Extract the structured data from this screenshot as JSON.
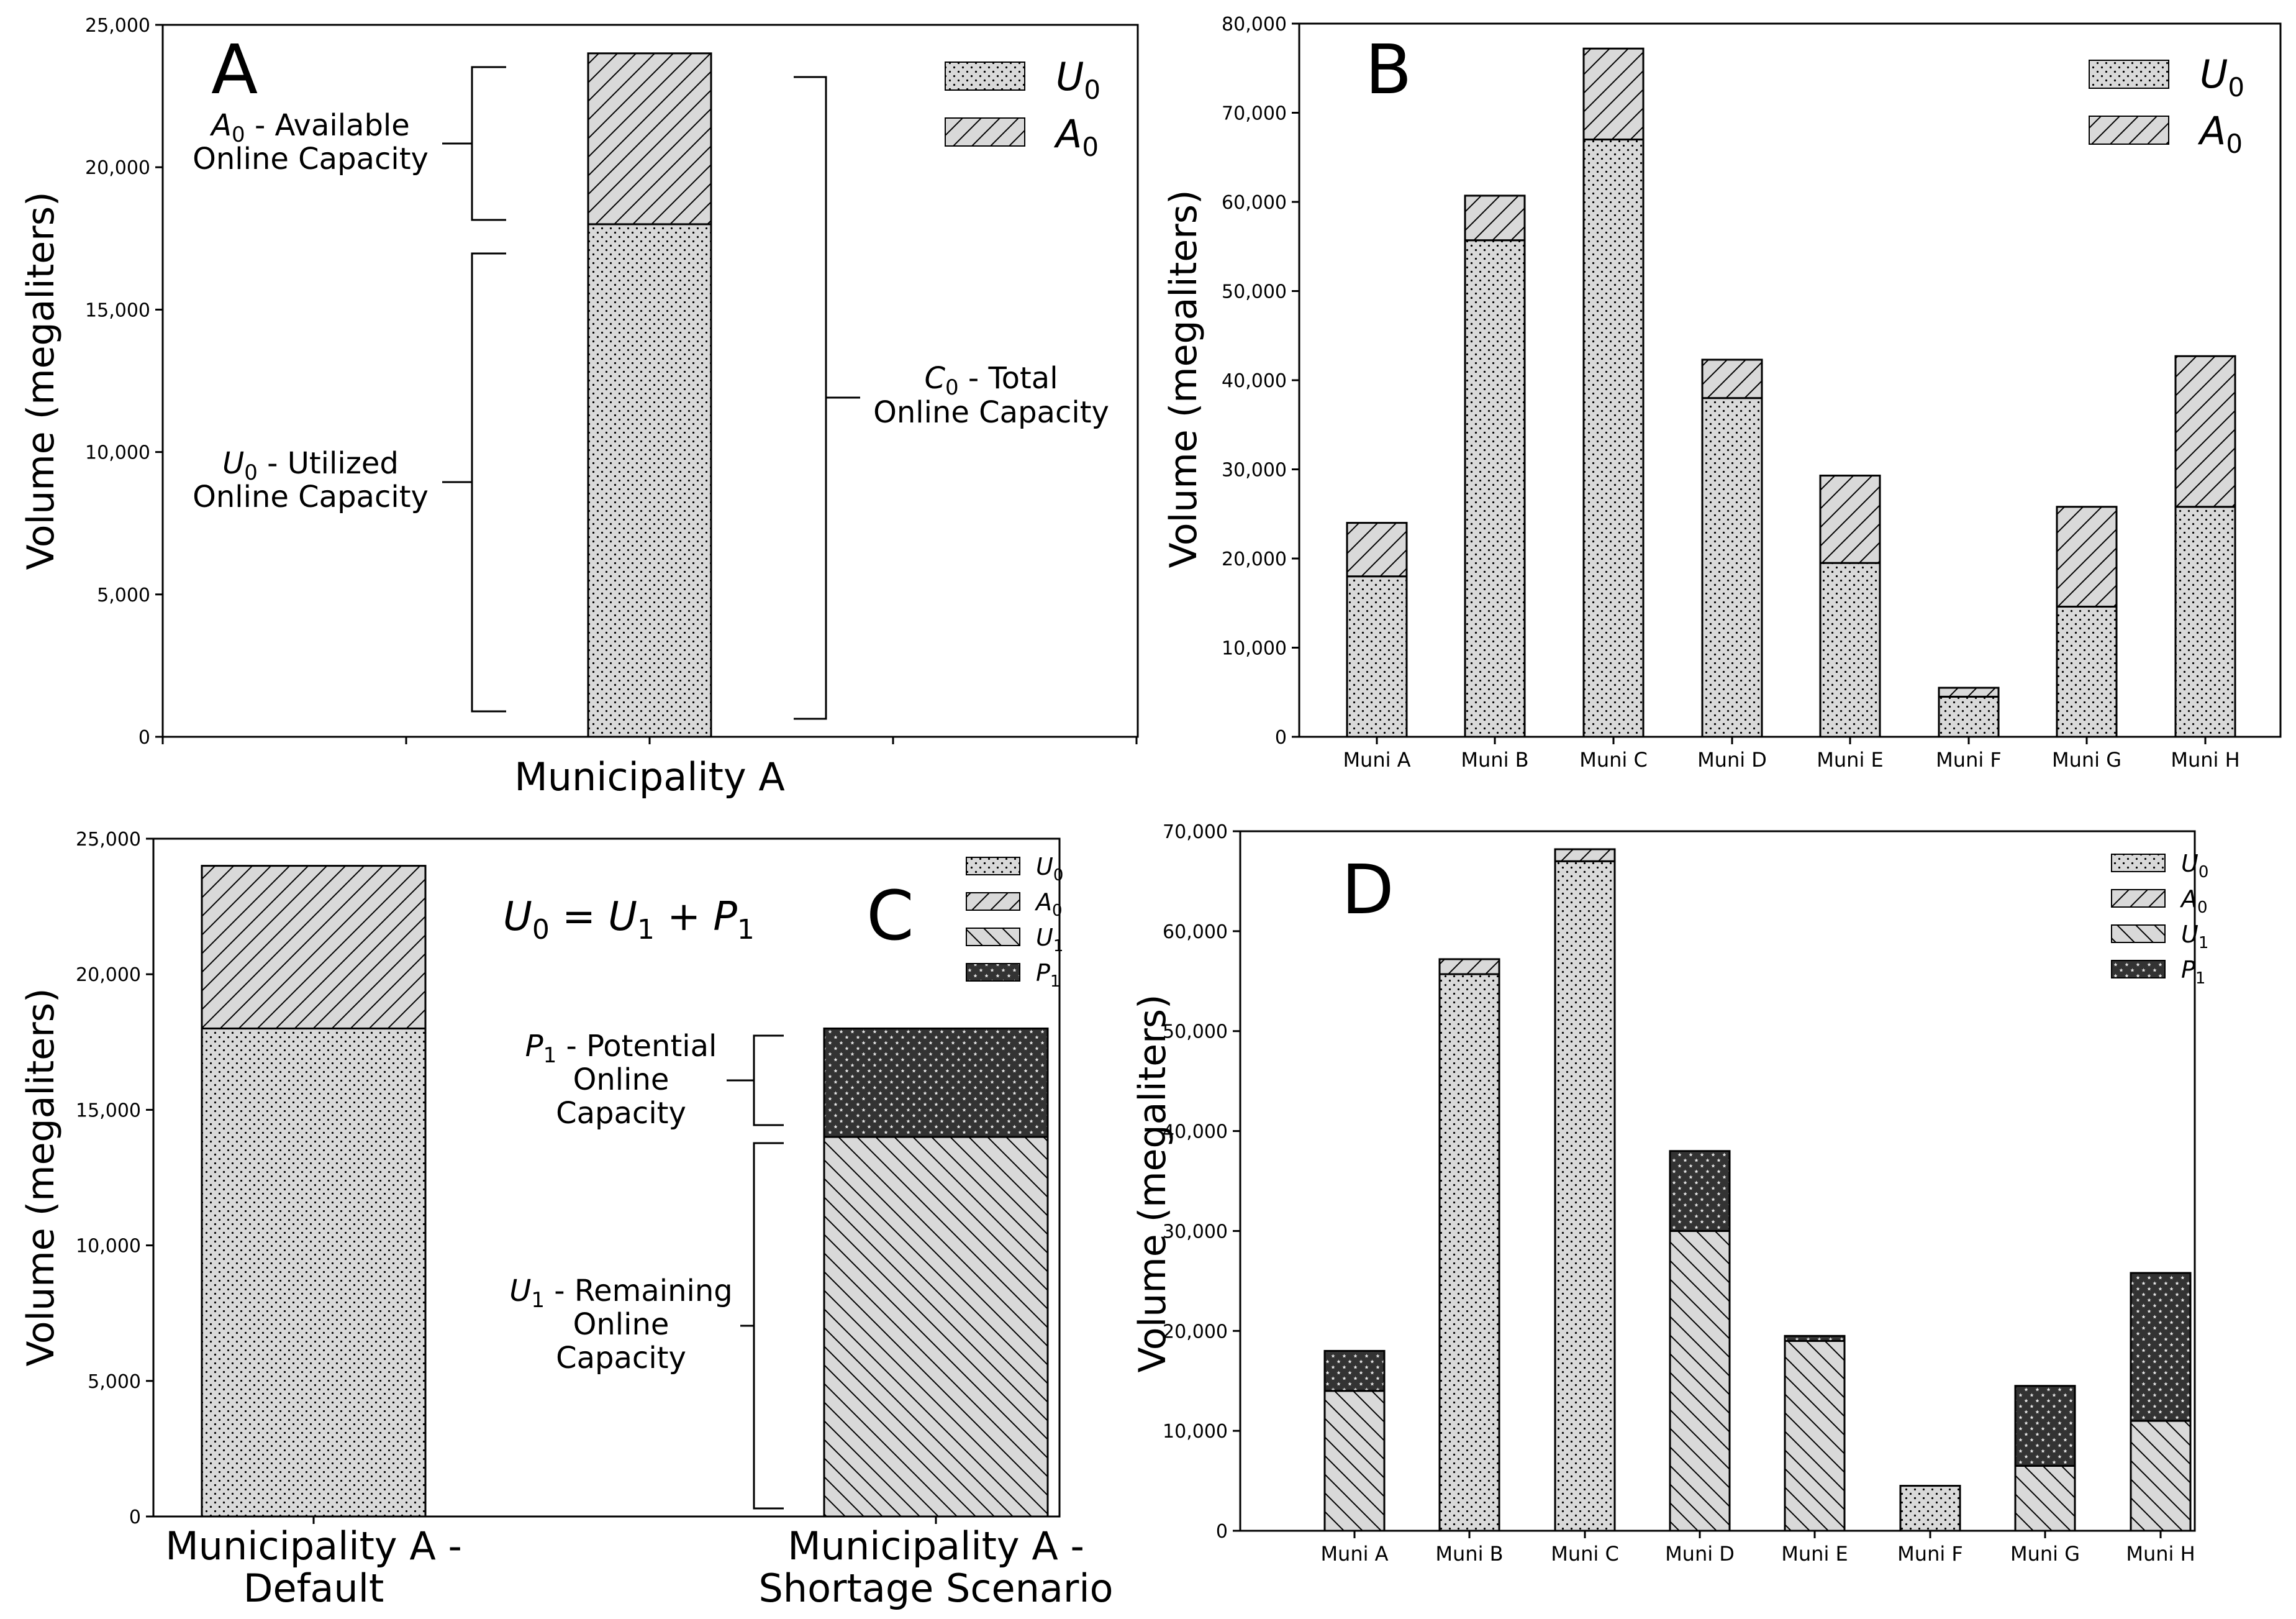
{
  "colors": {
    "bar_fill": "#d9d9d9",
    "stroke": "#000000",
    "background": "#ffffff"
  },
  "chart_data": [
    {
      "panel": "A",
      "type": "bar",
      "stacked": true,
      "letter": "A",
      "ylabel": "Volume (megaliters)",
      "ylim": [
        0,
        25000
      ],
      "yticks": [
        0,
        5000,
        10000,
        15000,
        20000,
        25000
      ],
      "ytick_labels": [
        "0",
        "5,000",
        "10,000",
        "15,000",
        "20,000",
        "25,000"
      ],
      "categories": [
        "Municipality A"
      ],
      "series": [
        {
          "key": "U0",
          "name": "U_0",
          "pattern": "dots",
          "values": [
            18000
          ]
        },
        {
          "key": "A0",
          "name": "A_0",
          "pattern": "hatch",
          "values": [
            6000
          ]
        }
      ],
      "legend": [
        {
          "key": "U0",
          "base": "U",
          "sub": "0"
        },
        {
          "key": "A0",
          "base": "A",
          "sub": "0"
        }
      ],
      "legend_position": "top-right",
      "annotations": [
        {
          "key": "a0",
          "sym": "A",
          "sub": "0",
          "rest": " - Available",
          "line2": "Online Capacity"
        },
        {
          "key": "u0",
          "sym": "U",
          "sub": "0",
          "rest": " - Utilized",
          "line2": "Online Capacity"
        },
        {
          "key": "c0",
          "sym": "C",
          "sub": "0",
          "rest": " - Total",
          "line2": "Online Capacity"
        }
      ]
    },
    {
      "panel": "B",
      "type": "bar",
      "stacked": true,
      "letter": "B",
      "ylabel": "Volume (megaliters)",
      "ylim": [
        0,
        80000
      ],
      "yticks": [
        0,
        10000,
        20000,
        30000,
        40000,
        50000,
        60000,
        70000,
        80000
      ],
      "ytick_labels": [
        "0",
        "10,000",
        "20,000",
        "30,000",
        "40,000",
        "50,000",
        "60,000",
        "70,000",
        "80,000"
      ],
      "categories": [
        "Muni A",
        "Muni B",
        "Muni C",
        "Muni D",
        "Muni E",
        "Muni F",
        "Muni G",
        "Muni H"
      ],
      "series": [
        {
          "key": "U0",
          "name": "U_0",
          "pattern": "dots",
          "values": [
            18000,
            55700,
            67000,
            38000,
            19500,
            4500,
            14600,
            25800
          ]
        },
        {
          "key": "A0",
          "name": "A_0",
          "pattern": "hatch",
          "values": [
            6000,
            5000,
            10200,
            4300,
            9800,
            1000,
            11200,
            16900
          ]
        }
      ],
      "legend": [
        {
          "key": "U0",
          "base": "U",
          "sub": "0"
        },
        {
          "key": "A0",
          "base": "A",
          "sub": "0"
        }
      ],
      "legend_position": "top-right"
    },
    {
      "panel": "C",
      "type": "bar",
      "stacked": true,
      "letter": "C",
      "ylabel": "Volume (megaliters)",
      "ylim": [
        0,
        25000
      ],
      "yticks": [
        0,
        5000,
        10000,
        15000,
        20000,
        25000
      ],
      "ytick_labels": [
        "0",
        "5,000",
        "10,000",
        "15,000",
        "20,000",
        "25,000"
      ],
      "categories": [
        {
          "line1": "Municipality A -",
          "line2": "Default"
        },
        {
          "line1": "Municipality A -",
          "line2": "Shortage Scenario"
        }
      ],
      "series": [
        {
          "key": "U0",
          "name": "U_0",
          "pattern": "dots",
          "values": [
            18000,
            0
          ]
        },
        {
          "key": "A0",
          "name": "A_0",
          "pattern": "hatch",
          "values": [
            6000,
            0
          ]
        },
        {
          "key": "U1",
          "name": "U_1",
          "pattern": "backhatch",
          "values": [
            0,
            14000
          ]
        },
        {
          "key": "P1",
          "name": "P_1",
          "pattern": "stars",
          "values": [
            0,
            4000
          ]
        }
      ],
      "legend": [
        {
          "key": "U0",
          "base": "U",
          "sub": "0"
        },
        {
          "key": "A0",
          "base": "A",
          "sub": "0"
        },
        {
          "key": "U1",
          "base": "U",
          "sub": "1"
        },
        {
          "key": "P1",
          "base": "P",
          "sub": "1"
        }
      ],
      "legend_position": "top-right",
      "equation": {
        "lhs": "U",
        "lhs_sub": "0",
        "eq": " = ",
        "t1": "U",
        "t1_sub": "1",
        "plus": " + ",
        "t2": "P",
        "t2_sub": "1"
      },
      "annotations": [
        {
          "key": "p1",
          "sym": "P",
          "sub": "1",
          "rest": " - Potential",
          "line2": "Online",
          "line3": "Capacity"
        },
        {
          "key": "u1",
          "sym": "U",
          "sub": "1",
          "rest": " - Remaining",
          "line2": "Online",
          "line3": "Capacity"
        }
      ]
    },
    {
      "panel": "D",
      "type": "bar",
      "stacked": true,
      "letter": "D",
      "ylabel": "Volume (megaliters)",
      "ylim": [
        0,
        70000
      ],
      "yticks": [
        0,
        10000,
        20000,
        30000,
        40000,
        50000,
        60000,
        70000
      ],
      "ytick_labels": [
        "0",
        "10,000",
        "20,000",
        "30,000",
        "40,000",
        "50,000",
        "60,000",
        "70,000"
      ],
      "categories": [
        "Muni A",
        "Muni B",
        "Muni C",
        "Muni D",
        "Muni E",
        "Muni F",
        "Muni G",
        "Muni H"
      ],
      "series": [
        {
          "key": "U1",
          "name": "U_1",
          "pattern": "backhatch",
          "values": [
            14000,
            0,
            0,
            30000,
            19000,
            0,
            6500,
            11000
          ]
        },
        {
          "key": "P1",
          "name": "P_1",
          "pattern": "stars",
          "values": [
            4000,
            0,
            0,
            8000,
            500,
            0,
            8000,
            14800
          ]
        },
        {
          "key": "U0",
          "name": "U_0",
          "pattern": "dots",
          "values": [
            0,
            55700,
            67000,
            0,
            0,
            4500,
            0,
            0
          ]
        },
        {
          "key": "A0",
          "name": "A_0",
          "pattern": "hatch",
          "values": [
            0,
            1500,
            1200,
            0,
            0,
            0,
            0,
            0
          ]
        }
      ],
      "legend": [
        {
          "key": "U0",
          "base": "U",
          "sub": "0"
        },
        {
          "key": "A0",
          "base": "A",
          "sub": "0"
        },
        {
          "key": "U1",
          "base": "U",
          "sub": "1"
        },
        {
          "key": "P1",
          "base": "P",
          "sub": "1"
        }
      ],
      "legend_position": "top-right"
    }
  ]
}
